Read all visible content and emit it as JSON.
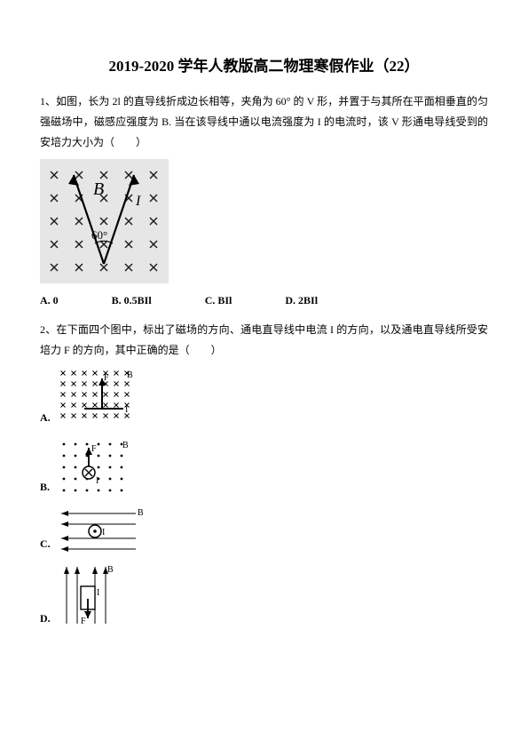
{
  "title": "2019-2020 学年人教版高二物理寒假作业（22）",
  "q1": {
    "text": "1、如图，长为 2l 的直导线折成边长相等，夹角为 60° 的 V 形，并置于与其所在平面相垂直的匀强磁场中，磁感应强度为 B. 当在该导线中通以电流强度为 I 的电流时，该 V 形通电导线受到的安培力大小为（　　）",
    "options": {
      "A": "A.  0",
      "B": "B.  0.5BIl",
      "C": "C.  BIl",
      "D": "D.  2BIl"
    },
    "fig": {
      "bg": "#e8e8e8",
      "cross_color": "#1a1a1a",
      "wire_color": "#000",
      "label_B": "B",
      "label_I": "I",
      "angle": "60°"
    }
  },
  "q2": {
    "text": "2、在下面四个图中，标出了磁场的方向、通电直导线中电流 I 的方向，以及通电直导线所受安培力 F 的方向，其中正确的是（　　）",
    "labels": {
      "A": "A.",
      "B": "B.",
      "C": "C.",
      "D": "D."
    },
    "fig_common": {
      "cross_color": "#000",
      "dot_color": "#000",
      "wire_color": "#000",
      "label_B": "B",
      "label_I": "I",
      "label_F": "F"
    }
  }
}
